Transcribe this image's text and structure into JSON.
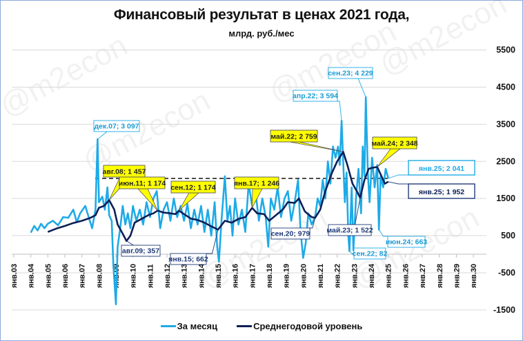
{
  "title": "Финансовый результат в ценах 2021 года,",
  "subtitle": "млрд. руб./мес",
  "watermark": "@m2econ",
  "legend": [
    {
      "label": "За месяц",
      "color": "#1eaae7"
    },
    {
      "label": "Среднегодовой уровень",
      "color": "#0d1f56"
    }
  ],
  "chart_data": {
    "type": "line",
    "title": "Финансовый результат в ценах 2021 года, млрд. руб./мес",
    "xlabel": "",
    "ylabel": "млрд. руб./мес",
    "ylim": [
      -1500,
      5500
    ],
    "yticks": [
      5500,
      4500,
      3500,
      2500,
      1500,
      500,
      -500,
      -1500
    ],
    "xticks": [
      "янв.03",
      "янв.04",
      "янв.05",
      "янв.06",
      "янв.07",
      "янв.08",
      "янв.09",
      "янв.10",
      "янв.11",
      "янв.12",
      "янв.13",
      "янв.14",
      "янв.15",
      "янв.16",
      "янв.17",
      "янв.18",
      "янв.19",
      "янв.20",
      "янв.21",
      "янв.22",
      "янв.23",
      "янв.24",
      "янв.25",
      "янв.26",
      "янв.27",
      "янв.28",
      "янв.29",
      "янв.30"
    ],
    "grid": true,
    "legend_position": "bottom",
    "reference_line": {
      "value": 2041,
      "style": "dashed",
      "from": "авг.08",
      "to": "янв.25"
    },
    "series": [
      {
        "name": "За месяц",
        "color": "#1eaae7",
        "points": [
          [
            "янв.04",
            580
          ],
          [
            "янв.05",
            800
          ],
          [
            "янв.06",
            950
          ],
          [
            "янв.07",
            1050
          ],
          [
            "дек.07",
            3097
          ],
          [
            "янв.08",
            1300
          ],
          [
            "янв.09",
            -1350
          ],
          [
            "янв.10",
            800
          ],
          [
            "янв.11",
            1000
          ],
          [
            "янв.12",
            1100
          ],
          [
            "янв.13",
            1000
          ],
          [
            "янв.14",
            900
          ],
          [
            "янв.15",
            -200
          ],
          [
            "янв.16",
            900
          ],
          [
            "янв.17",
            1300
          ],
          [
            "янв.18",
            200
          ],
          [
            "янв.19",
            1300
          ],
          [
            "янв.20",
            -100
          ],
          [
            "янв.21",
            1100
          ],
          [
            "апр.22",
            3594
          ],
          [
            "сен.22",
            82
          ],
          [
            "сен.23",
            4229
          ],
          [
            "июн.24",
            663
          ],
          [
            "янв.25",
            2041
          ]
        ]
      },
      {
        "name": "Среднегодовой уровень",
        "color": "#0d1f56",
        "points": [
          [
            "янв.05",
            600
          ],
          [
            "янв.06",
            760
          ],
          [
            "янв.07",
            900
          ],
          [
            "янв.08",
            1050
          ],
          [
            "авг.08",
            1457
          ],
          [
            "авг.09",
            357
          ],
          [
            "янв.10",
            800
          ],
          [
            "июн.11",
            1174
          ],
          [
            "сен.12",
            1174
          ],
          [
            "янв.15",
            662
          ],
          [
            "янв.17",
            1246
          ],
          [
            "янв.19",
            1350
          ],
          [
            "сен.20",
            979
          ],
          [
            "май.22",
            2759
          ],
          [
            "май.23",
            1522
          ],
          [
            "май.24",
            2348
          ],
          [
            "янв.25",
            1952
          ]
        ]
      }
    ],
    "annotations": [
      {
        "text": "дек.07; 3 097",
        "series": "За месяц",
        "style": "light-blue-box"
      },
      {
        "text": "авг.08; 1 457",
        "series": "Среднегодовой уровень",
        "style": "yellow-callout"
      },
      {
        "text": "июн.11; 1 174",
        "series": "Среднегодовой уровень",
        "style": "yellow-callout"
      },
      {
        "text": "сен.12; 1 174",
        "series": "Среднегодовой уровень",
        "style": "yellow-callout"
      },
      {
        "text": "янв.17; 1 246",
        "series": "Среднегодовой уровень",
        "style": "yellow-callout"
      },
      {
        "text": "май.22; 2 759",
        "series": "Среднегодовой уровень",
        "style": "yellow-callout"
      },
      {
        "text": "май.24; 2 348",
        "series": "Среднегодовой уровень",
        "style": "yellow-callout"
      },
      {
        "text": "авг.09; 357",
        "series": "Среднегодовой уровень",
        "style": "navy-box"
      },
      {
        "text": "янв.15; 662",
        "series": "Среднегодовой уровень",
        "style": "navy-box"
      },
      {
        "text": "сен.20; 979",
        "series": "Среднегодовой уровень",
        "style": "navy-box"
      },
      {
        "text": "май.23; 1 522",
        "series": "Среднегодовой уровень",
        "style": "navy-box"
      },
      {
        "text": "апр.22; 3 594",
        "series": "За месяц",
        "style": "light-blue-box"
      },
      {
        "text": "сен.23; 4 229",
        "series": "За месяц",
        "style": "light-blue-box"
      },
      {
        "text": "сен.22; 82",
        "series": "За месяц",
        "style": "light-blue-box"
      },
      {
        "text": "июн.24; 663",
        "series": "За месяц",
        "style": "light-blue-box"
      },
      {
        "text": "янв.25; 2 041",
        "series": "За месяц",
        "style": "light-blue-box-large"
      },
      {
        "text": "янв.25; 1 952",
        "series": "Среднегодовой уровень",
        "style": "navy-box-large"
      }
    ]
  }
}
